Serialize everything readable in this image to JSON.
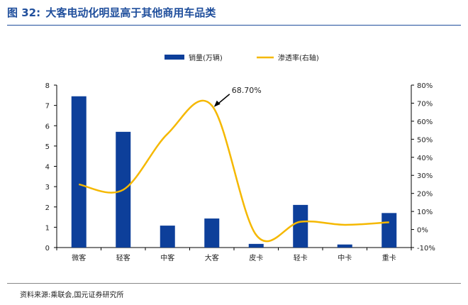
{
  "header": {
    "figure_num": "图 32:",
    "title": "大客电动化明显高于其他商用车品类"
  },
  "source": "资料来源:乘联会,国元证券研究所",
  "colors": {
    "bar": "#0d3f9a",
    "line": "#f5b800",
    "title": "#1f4e9c"
  },
  "chart_data": {
    "type": "bar",
    "categories": [
      "微客",
      "轻客",
      "中客",
      "大客",
      "皮卡",
      "轻卡",
      "中卡",
      "重卡"
    ],
    "series": [
      {
        "name": "销量(万辆)",
        "type": "bar",
        "axis": "left",
        "values": [
          7.45,
          5.7,
          1.08,
          1.43,
          0.18,
          2.1,
          0.15,
          1.7
        ]
      },
      {
        "name": "渗透率(右轴)",
        "type": "line",
        "axis": "right",
        "values": [
          25,
          22,
          53,
          68.7,
          -3,
          4.3,
          2.6,
          4
        ]
      }
    ],
    "y_left": {
      "min": 0,
      "max": 8,
      "ticks": [
        "0",
        "1",
        "2",
        "3",
        "4",
        "5",
        "6",
        "7",
        "8"
      ]
    },
    "y_right": {
      "min": -10,
      "max": 80,
      "ticks": [
        "-10%",
        "0%",
        "10%",
        "20%",
        "30%",
        "40%",
        "50%",
        "60%",
        "70%",
        "80%"
      ]
    },
    "annotation": {
      "text": "68.70%",
      "category_index": 3
    },
    "legend_position": "top-center",
    "grid": false
  }
}
